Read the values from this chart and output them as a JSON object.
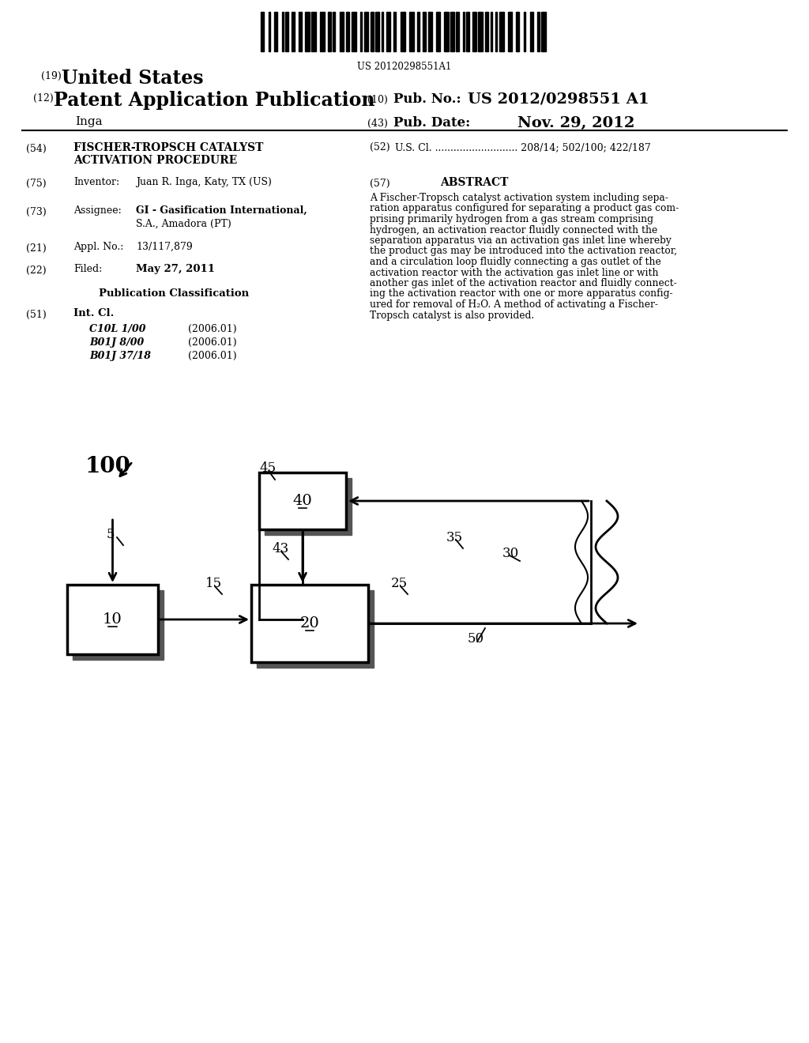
{
  "barcode_text": "US 20120298551A1",
  "header_19_text": "United States",
  "header_12_text": "Patent Application Publication",
  "header_name": "Inga",
  "pub_no_label": "Pub. No.:",
  "pub_no_value": "US 2012/0298551 A1",
  "pub_date_label": "Pub. Date:",
  "pub_date_value": "Nov. 29, 2012",
  "field_54_label": "(54)",
  "field_54_text_line1": "FISCHER-TROPSCH CATALYST",
  "field_54_text_line2": "ACTIVATION PROCEDURE",
  "field_52_label": "(52)",
  "field_52_text": "U.S. Cl. ........................... 208/14; 502/100; 422/187",
  "field_75_label": "(75)",
  "field_75_key": "Inventor:",
  "field_75_value": "Juan R. Inga, Katy, TX (US)",
  "field_57_label": "(57)",
  "field_57_key": "ABSTRACT",
  "field_57_text": "A Fischer-Tropsch catalyst activation system including sepa-ration apparatus configured for separating a product gas com-prising primarily hydrogen from a gas stream comprising hydrogen, an activation reactor fluidly connected with the separation apparatus via an activation gas inlet line whereby the product gas may be introduced into the activation reactor, and a circulation loop fluidly connecting a gas outlet of the activation reactor with the activation gas inlet line or with another gas inlet of the activation reactor and fluidly connect-ing the activation reactor with one or more apparatus config-ured for removal of H₂O. A method of activating a Fischer-Tropsch catalyst is also provided.",
  "field_73_label": "(73)",
  "field_73_key": "Assignee:",
  "field_73_value_bold": "GI - Gasification International,",
  "field_73_value2": "S.A., Amadora (PT)",
  "field_21_label": "(21)",
  "field_21_key": "Appl. No.:",
  "field_21_value": "13/117,879",
  "field_22_label": "(22)",
  "field_22_key": "Filed:",
  "field_22_value": "May 27, 2011",
  "pub_class_header": "Publication Classification",
  "field_51_label": "(51)",
  "field_51_key": "Int. Cl.",
  "field_51_rows": [
    [
      "C10L 1/00",
      "(2006.01)"
    ],
    [
      "B01J 8/00",
      "(2006.01)"
    ],
    [
      "B01J 37/18",
      "(2006.01)"
    ]
  ],
  "diagram_label_100": "100",
  "diagram_label_5": "5",
  "diagram_label_10": "10",
  "diagram_label_15": "15",
  "diagram_label_20": "20",
  "diagram_label_25": "25",
  "diagram_label_30": "30",
  "diagram_label_35": "35",
  "diagram_label_40": "40",
  "diagram_label_43": "43",
  "diagram_label_45": "45",
  "diagram_label_50": "50",
  "bg_color": "#ffffff",
  "line_color": "#000000"
}
